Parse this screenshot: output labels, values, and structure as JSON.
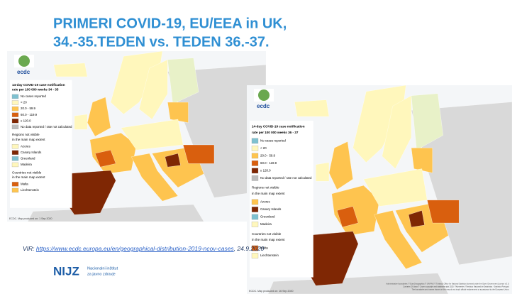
{
  "title": [
    "PRIMERI COVID-19, EU/EEA in UK,",
    "34.-35.TEDEN vs. TEDEN 36.-37."
  ],
  "maps": [
    {
      "logo": "ecdc",
      "legend_title": [
        "14-day COVID-19 case notification",
        "rate per 100 000 weeks 34 - 35"
      ],
      "legend": [
        {
          "label": "No cases reported",
          "color": "#7fc1d0"
        },
        {
          "label": "< 20",
          "color": "#fff7bc"
        },
        {
          "label": "20.0 - 59.9",
          "color": "#fec44f"
        },
        {
          "label": "60.0 - 119.9",
          "color": "#d95f0e"
        },
        {
          "label": "≥ 120.0",
          "color": "#7f2704"
        },
        {
          "label": "No data reported / rate not calculated",
          "color": "#bdbdbd"
        }
      ],
      "regions_title": [
        "Regions not visible",
        "in the main map extent"
      ],
      "regions": [
        {
          "label": "Azores",
          "color": "#fff7bc"
        },
        {
          "label": "Canary Islands",
          "color": "#7f2704"
        },
        {
          "label": "Greenland",
          "color": "#7fc1d0"
        },
        {
          "label": "Madeira",
          "color": "#fff7bc"
        }
      ],
      "countries_title": [
        "Countries not visible",
        "in the main map extent"
      ],
      "countries": [
        {
          "label": "Malta",
          "color": "#d95f0e"
        },
        {
          "label": "Liechtenstein",
          "color": "#fec44f"
        }
      ],
      "footer": "ECDC. Map produced on: 1 Sep 2020"
    },
    {
      "logo": "ecdc",
      "legend_title": [
        "14-day COVID-19 case notification",
        "rate per 100 000 weeks 36 - 37"
      ],
      "legend": [
        {
          "label": "No cases reported",
          "color": "#7fc1d0"
        },
        {
          "label": "< 20",
          "color": "#fff7bc"
        },
        {
          "label": "20.0 - 59.9",
          "color": "#fec44f"
        },
        {
          "label": "60.0 - 119.9",
          "color": "#d95f0e"
        },
        {
          "label": "≥ 120.0",
          "color": "#7f2704"
        },
        {
          "label": "No data reported / rate not calculated",
          "color": "#bdbdbd"
        }
      ],
      "regions_title": [
        "Regions not visible",
        "in the main map extent"
      ],
      "regions": [
        {
          "label": "Azores",
          "color": "#fec44f"
        },
        {
          "label": "Canary Islands",
          "color": "#7f2704"
        },
        {
          "label": "Greenland",
          "color": "#7fc1d0"
        },
        {
          "label": "Madeira",
          "color": "#fff7bc"
        }
      ],
      "countries_title": [
        "Countries not visible",
        "in the main map extent"
      ],
      "countries": [
        {
          "label": "Malta",
          "color": "#d95f0e"
        },
        {
          "label": "Liechtenstein",
          "color": "#fff7bc"
        }
      ],
      "footer": "ECDC. Map produced on: 16 Sep 2020",
      "attribution": [
        "Administrative boundaries: © EuroGeographics © UN-FAO © Turkstat. Office for National Statistics licensed under the Open Government Licence v.3.0.",
        "Contains OS data © Crown copyright and database right 2020. ©Kartverket. ©Instituto Nacional de Estatística - Statistics Portugal.",
        "The boundaries and names shown on this map do not imply official endorsement or acceptance by the European Union."
      ]
    }
  ],
  "source": {
    "prefix": "VIR:",
    "url": "https://www.ecdc.europa.eu/en/geographical-distribution-2019-ncov-cases",
    "date": ", 24.9.2020"
  },
  "logo": {
    "name": "NIJZ",
    "subtitle": [
      "Nacionalni inštitut",
      "za javno zdravje"
    ]
  }
}
